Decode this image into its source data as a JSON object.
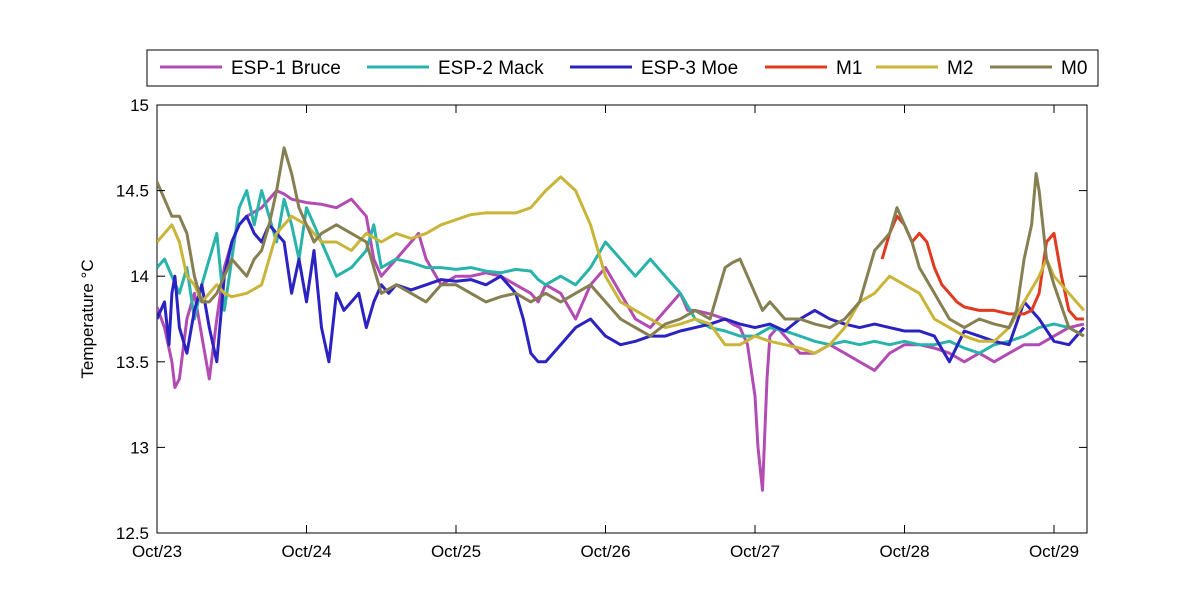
{
  "chart_data": {
    "type": "line",
    "title": "",
    "xlabel": "",
    "ylabel": "Temperature °C",
    "x_ticks": [
      "Oct/23",
      "Oct/24",
      "Oct/25",
      "Oct/26",
      "Oct/27",
      "Oct/28",
      "Oct/29"
    ],
    "xlim": [
      0,
      6.2
    ],
    "ylim": [
      12.5,
      15
    ],
    "y_ticks": [
      12.5,
      13,
      13.5,
      14,
      14.5,
      15
    ],
    "grid": false,
    "legend_position": "top",
    "x_unit": "days since Oct/23 00:00",
    "series": [
      {
        "name": "ESP-1 Bruce",
        "color": "#b24cb3",
        "x": [
          0,
          0.05,
          0.1,
          0.12,
          0.15,
          0.2,
          0.25,
          0.3,
          0.35,
          0.4,
          0.45,
          0.5,
          0.55,
          0.6,
          0.7,
          0.8,
          0.85,
          0.9,
          1.0,
          1.1,
          1.2,
          1.3,
          1.4,
          1.45,
          1.5,
          1.6,
          1.7,
          1.75,
          1.8,
          1.9,
          2.0,
          2.1,
          2.2,
          2.3,
          2.4,
          2.5,
          2.55,
          2.6,
          2.7,
          2.8,
          2.9,
          3.0,
          3.1,
          3.2,
          3.3,
          3.4,
          3.5,
          3.55,
          3.6,
          3.7,
          3.8,
          3.85,
          3.9,
          3.95,
          4.0,
          4.02,
          4.05,
          4.08,
          4.1,
          4.15,
          4.2,
          4.3,
          4.4,
          4.5,
          4.6,
          4.7,
          4.8,
          4.9,
          5.0,
          5.1,
          5.2,
          5.3,
          5.4,
          5.5,
          5.6,
          5.7,
          5.8,
          5.9,
          6.0,
          6.1,
          6.2
        ],
        "y": [
          13.82,
          13.7,
          13.5,
          13.35,
          13.4,
          13.75,
          13.9,
          13.65,
          13.4,
          13.75,
          14.05,
          14.2,
          14.3,
          14.35,
          14.4,
          14.5,
          14.48,
          14.45,
          14.43,
          14.42,
          14.4,
          14.45,
          14.35,
          14.1,
          14.0,
          14.1,
          14.2,
          14.25,
          14.1,
          13.95,
          14.0,
          14.0,
          14.02,
          14.0,
          13.95,
          13.9,
          13.85,
          13.95,
          13.9,
          13.75,
          13.95,
          14.05,
          13.9,
          13.75,
          13.7,
          13.8,
          13.9,
          13.8,
          13.8,
          13.78,
          13.75,
          13.72,
          13.7,
          13.6,
          13.3,
          13.0,
          12.75,
          13.4,
          13.65,
          13.7,
          13.65,
          13.55,
          13.55,
          13.6,
          13.55,
          13.5,
          13.45,
          13.55,
          13.6,
          13.6,
          13.58,
          13.55,
          13.5,
          13.55,
          13.5,
          13.55,
          13.6,
          13.6,
          13.65,
          13.7,
          13.72
        ]
      },
      {
        "name": "ESP-2 Mack",
        "color": "#2ab3aa",
        "x": [
          0,
          0.05,
          0.1,
          0.15,
          0.2,
          0.25,
          0.3,
          0.35,
          0.4,
          0.45,
          0.5,
          0.55,
          0.6,
          0.65,
          0.7,
          0.8,
          0.85,
          0.9,
          0.95,
          1.0,
          1.05,
          1.1,
          1.2,
          1.3,
          1.4,
          1.45,
          1.5,
          1.6,
          1.7,
          1.8,
          1.9,
          2.0,
          2.1,
          2.2,
          2.3,
          2.4,
          2.5,
          2.55,
          2.6,
          2.7,
          2.8,
          2.9,
          3.0,
          3.1,
          3.2,
          3.3,
          3.4,
          3.5,
          3.6,
          3.7,
          3.8,
          3.9,
          4.0,
          4.1,
          4.2,
          4.3,
          4.4,
          4.5,
          4.6,
          4.7,
          4.8,
          4.9,
          5.0,
          5.1,
          5.2,
          5.3,
          5.4,
          5.5,
          5.6,
          5.7,
          5.8,
          5.9,
          6.0,
          6.1,
          6.2
        ],
        "y": [
          14.05,
          14.1,
          14.0,
          13.9,
          14.05,
          13.75,
          13.95,
          14.1,
          14.25,
          13.8,
          14.1,
          14.4,
          14.5,
          14.3,
          14.5,
          14.2,
          14.45,
          14.3,
          14.1,
          14.4,
          14.3,
          14.2,
          14.0,
          14.05,
          14.15,
          14.3,
          14.05,
          14.1,
          14.08,
          14.05,
          14.05,
          14.04,
          14.05,
          14.03,
          14.02,
          14.04,
          14.03,
          13.98,
          13.95,
          14.0,
          13.95,
          14.05,
          14.2,
          14.1,
          14.0,
          14.1,
          14.0,
          13.9,
          13.75,
          13.7,
          13.68,
          13.65,
          13.65,
          13.7,
          13.68,
          13.65,
          13.62,
          13.6,
          13.62,
          13.6,
          13.62,
          13.6,
          13.62,
          13.6,
          13.6,
          13.62,
          13.58,
          13.55,
          13.6,
          13.62,
          13.65,
          13.7,
          13.72,
          13.7,
          13.65
        ]
      },
      {
        "name": "ESP-3 Moe",
        "color": "#2b22c2",
        "x": [
          0,
          0.05,
          0.08,
          0.1,
          0.12,
          0.15,
          0.2,
          0.25,
          0.3,
          0.35,
          0.4,
          0.45,
          0.5,
          0.55,
          0.6,
          0.65,
          0.7,
          0.75,
          0.8,
          0.85,
          0.9,
          0.95,
          1.0,
          1.05,
          1.1,
          1.15,
          1.2,
          1.25,
          1.3,
          1.35,
          1.4,
          1.45,
          1.5,
          1.55,
          1.6,
          1.7,
          1.8,
          1.9,
          2.0,
          2.1,
          2.2,
          2.3,
          2.4,
          2.45,
          2.5,
          2.55,
          2.6,
          2.7,
          2.8,
          2.9,
          3.0,
          3.1,
          3.2,
          3.3,
          3.4,
          3.5,
          3.6,
          3.7,
          3.8,
          3.9,
          4.0,
          4.1,
          4.2,
          4.3,
          4.4,
          4.5,
          4.6,
          4.7,
          4.8,
          4.9,
          5.0,
          5.1,
          5.2,
          5.3,
          5.4,
          5.5,
          5.6,
          5.7,
          5.8,
          5.9,
          6.0,
          6.1,
          6.2
        ],
        "y": [
          13.75,
          13.85,
          13.6,
          13.9,
          14.0,
          13.7,
          13.55,
          13.8,
          13.95,
          13.7,
          13.5,
          14.0,
          14.2,
          14.3,
          14.35,
          14.25,
          14.2,
          14.3,
          14.25,
          14.2,
          13.9,
          14.1,
          13.85,
          14.15,
          13.7,
          13.5,
          13.9,
          13.8,
          13.85,
          13.9,
          13.7,
          13.85,
          13.95,
          13.9,
          13.95,
          13.92,
          13.95,
          13.98,
          13.97,
          13.98,
          13.95,
          14.0,
          13.9,
          13.75,
          13.55,
          13.5,
          13.5,
          13.6,
          13.7,
          13.75,
          13.65,
          13.6,
          13.62,
          13.65,
          13.65,
          13.68,
          13.7,
          13.72,
          13.75,
          13.72,
          13.7,
          13.72,
          13.68,
          13.75,
          13.8,
          13.75,
          13.72,
          13.7,
          13.72,
          13.7,
          13.68,
          13.68,
          13.65,
          13.5,
          13.68,
          13.65,
          13.62,
          13.6,
          13.85,
          13.75,
          13.62,
          13.6,
          13.7
        ]
      },
      {
        "name": "M1",
        "color": "#e03a1f",
        "x": [
          4.85,
          4.9,
          4.95,
          5.0,
          5.05,
          5.1,
          5.15,
          5.2,
          5.25,
          5.3,
          5.35,
          5.4,
          5.5,
          5.6,
          5.7,
          5.8,
          5.85,
          5.9,
          5.95,
          6.0,
          6.05,
          6.1,
          6.15,
          6.2
        ],
        "y": [
          14.1,
          14.25,
          14.35,
          14.3,
          14.2,
          14.25,
          14.2,
          14.05,
          13.95,
          13.9,
          13.85,
          13.82,
          13.8,
          13.8,
          13.78,
          13.78,
          13.8,
          13.9,
          14.2,
          14.25,
          14.0,
          13.8,
          13.75,
          13.75
        ]
      },
      {
        "name": "M2",
        "color": "#c9b53a",
        "x": [
          0,
          0.05,
          0.1,
          0.15,
          0.2,
          0.25,
          0.3,
          0.35,
          0.4,
          0.45,
          0.5,
          0.6,
          0.7,
          0.8,
          0.9,
          1.0,
          1.1,
          1.2,
          1.3,
          1.4,
          1.5,
          1.6,
          1.7,
          1.8,
          1.9,
          2.0,
          2.1,
          2.2,
          2.3,
          2.4,
          2.5,
          2.6,
          2.7,
          2.8,
          2.9,
          3.0,
          3.1,
          3.2,
          3.3,
          3.4,
          3.5,
          3.6,
          3.7,
          3.8,
          3.9,
          4.0,
          4.1,
          4.2,
          4.3,
          4.4,
          4.5,
          4.6,
          4.7,
          4.8,
          4.9,
          5.0,
          5.1,
          5.2,
          5.3,
          5.4,
          5.5,
          5.6,
          5.7,
          5.8,
          5.9,
          5.95,
          6.0,
          6.05,
          6.1,
          6.15,
          6.2
        ],
        "y": [
          14.2,
          14.25,
          14.3,
          14.2,
          14.0,
          13.95,
          13.85,
          13.9,
          13.95,
          13.9,
          13.88,
          13.9,
          13.95,
          14.25,
          14.35,
          14.3,
          14.2,
          14.2,
          14.15,
          14.25,
          14.2,
          14.25,
          14.22,
          14.25,
          14.3,
          14.33,
          14.36,
          14.37,
          14.37,
          14.37,
          14.4,
          14.5,
          14.58,
          14.5,
          14.3,
          14.0,
          13.85,
          13.8,
          13.75,
          13.7,
          13.72,
          13.75,
          13.72,
          13.6,
          13.6,
          13.65,
          13.62,
          13.6,
          13.58,
          13.55,
          13.6,
          13.7,
          13.85,
          13.9,
          14.0,
          13.95,
          13.9,
          13.75,
          13.7,
          13.65,
          13.62,
          13.62,
          13.7,
          13.85,
          14.0,
          14.1,
          14.0,
          13.95,
          13.9,
          13.85,
          13.8
        ]
      },
      {
        "name": "M0",
        "color": "#857f51",
        "x": [
          0,
          0.05,
          0.1,
          0.15,
          0.2,
          0.25,
          0.3,
          0.35,
          0.4,
          0.45,
          0.5,
          0.55,
          0.6,
          0.65,
          0.7,
          0.75,
          0.8,
          0.85,
          0.9,
          0.95,
          1.0,
          1.05,
          1.1,
          1.2,
          1.3,
          1.4,
          1.45,
          1.5,
          1.6,
          1.7,
          1.8,
          1.9,
          2.0,
          2.1,
          2.2,
          2.3,
          2.4,
          2.5,
          2.6,
          2.7,
          2.8,
          2.9,
          3.0,
          3.1,
          3.2,
          3.3,
          3.4,
          3.5,
          3.6,
          3.7,
          3.8,
          3.85,
          3.9,
          3.95,
          4.0,
          4.05,
          4.1,
          4.2,
          4.3,
          4.4,
          4.5,
          4.6,
          4.7,
          4.75,
          4.8,
          4.85,
          4.9,
          4.95,
          5.0,
          5.05,
          5.1,
          5.2,
          5.3,
          5.4,
          5.5,
          5.6,
          5.7,
          5.75,
          5.8,
          5.85,
          5.88,
          5.9,
          5.95,
          6.0,
          6.1,
          6.2
        ],
        "y": [
          14.55,
          14.45,
          14.35,
          14.35,
          14.25,
          14.0,
          13.85,
          13.85,
          13.9,
          14.0,
          14.1,
          14.05,
          14.0,
          14.1,
          14.15,
          14.3,
          14.5,
          14.75,
          14.6,
          14.4,
          14.3,
          14.2,
          14.25,
          14.3,
          14.25,
          14.2,
          14.05,
          13.9,
          13.95,
          13.9,
          13.85,
          13.95,
          13.95,
          13.9,
          13.85,
          13.88,
          13.9,
          13.85,
          13.9,
          13.85,
          13.9,
          13.95,
          13.85,
          13.75,
          13.7,
          13.65,
          13.72,
          13.75,
          13.8,
          13.75,
          14.05,
          14.08,
          14.1,
          14.0,
          13.9,
          13.8,
          13.85,
          13.75,
          13.75,
          13.72,
          13.7,
          13.75,
          13.85,
          14.0,
          14.15,
          14.2,
          14.25,
          14.4,
          14.3,
          14.2,
          14.05,
          13.9,
          13.75,
          13.7,
          13.75,
          13.72,
          13.7,
          13.8,
          14.1,
          14.3,
          14.6,
          14.5,
          14.1,
          13.95,
          13.7,
          13.65
        ]
      }
    ]
  }
}
